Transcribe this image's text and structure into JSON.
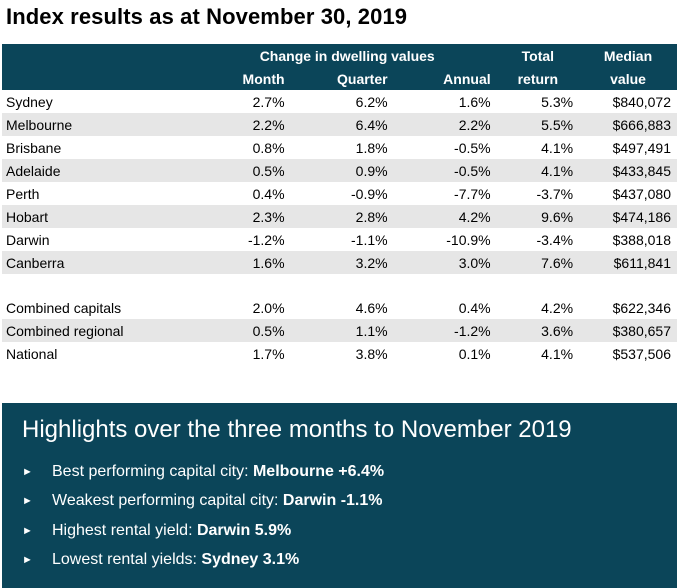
{
  "title": "Index results as at November 30, 2019",
  "table": {
    "group_header": "Change in dwelling values",
    "col_total_line1": "Total",
    "col_median_line1": "Median",
    "col_month": "Month",
    "col_quarter": "Quarter",
    "col_annual": "Annual",
    "col_total_line2": "return",
    "col_median_line2": "value",
    "rows": [
      {
        "city": "Sydney",
        "month": "2.7%",
        "quarter": "6.2%",
        "annual": "1.6%",
        "total": "5.3%",
        "median": "$840,072"
      },
      {
        "city": "Melbourne",
        "month": "2.2%",
        "quarter": "6.4%",
        "annual": "2.2%",
        "total": "5.5%",
        "median": "$666,883"
      },
      {
        "city": "Brisbane",
        "month": "0.8%",
        "quarter": "1.8%",
        "annual": "-0.5%",
        "total": "4.1%",
        "median": "$497,491"
      },
      {
        "city": "Adelaide",
        "month": "0.5%",
        "quarter": "0.9%",
        "annual": "-0.5%",
        "total": "4.1%",
        "median": "$433,845"
      },
      {
        "city": "Perth",
        "month": "0.4%",
        "quarter": "-0.9%",
        "annual": "-7.7%",
        "total": "-3.7%",
        "median": "$437,080"
      },
      {
        "city": "Hobart",
        "month": "2.3%",
        "quarter": "2.8%",
        "annual": "4.2%",
        "total": "9.6%",
        "median": "$474,186"
      },
      {
        "city": "Darwin",
        "month": "-1.2%",
        "quarter": "-1.1%",
        "annual": "-10.9%",
        "total": "-3.4%",
        "median": "$388,018"
      },
      {
        "city": "Canberra",
        "month": "1.6%",
        "quarter": "3.2%",
        "annual": "3.0%",
        "total": "7.6%",
        "median": "$611,841"
      }
    ],
    "summary_rows": [
      {
        "city": "Combined capitals",
        "month": "2.0%",
        "quarter": "4.6%",
        "annual": "0.4%",
        "total": "4.2%",
        "median": "$622,346"
      },
      {
        "city": "Combined regional",
        "month": "0.5%",
        "quarter": "1.1%",
        "annual": "-1.2%",
        "total": "3.6%",
        "median": "$380,657"
      },
      {
        "city": "National",
        "month": "1.7%",
        "quarter": "3.8%",
        "annual": "0.1%",
        "total": "4.1%",
        "median": "$537,506"
      }
    ]
  },
  "highlights": {
    "title": "Highlights over the three months to November 2019",
    "bullet_glyph": "►",
    "items": [
      {
        "text": "Best performing capital city: ",
        "bold": "Melbourne +6.4%"
      },
      {
        "text": "Weakest performing capital city: ",
        "bold": "Darwin -1.1%"
      },
      {
        "text": "Highest rental yield: ",
        "bold": "Darwin 5.9%"
      },
      {
        "text": "Lowest rental yields: ",
        "bold": "Sydney 3.1%"
      }
    ]
  },
  "colors": {
    "header_bg": "#0b4559",
    "stripe": "#e6e6e6",
    "text_on_dark": "#ffffff"
  }
}
